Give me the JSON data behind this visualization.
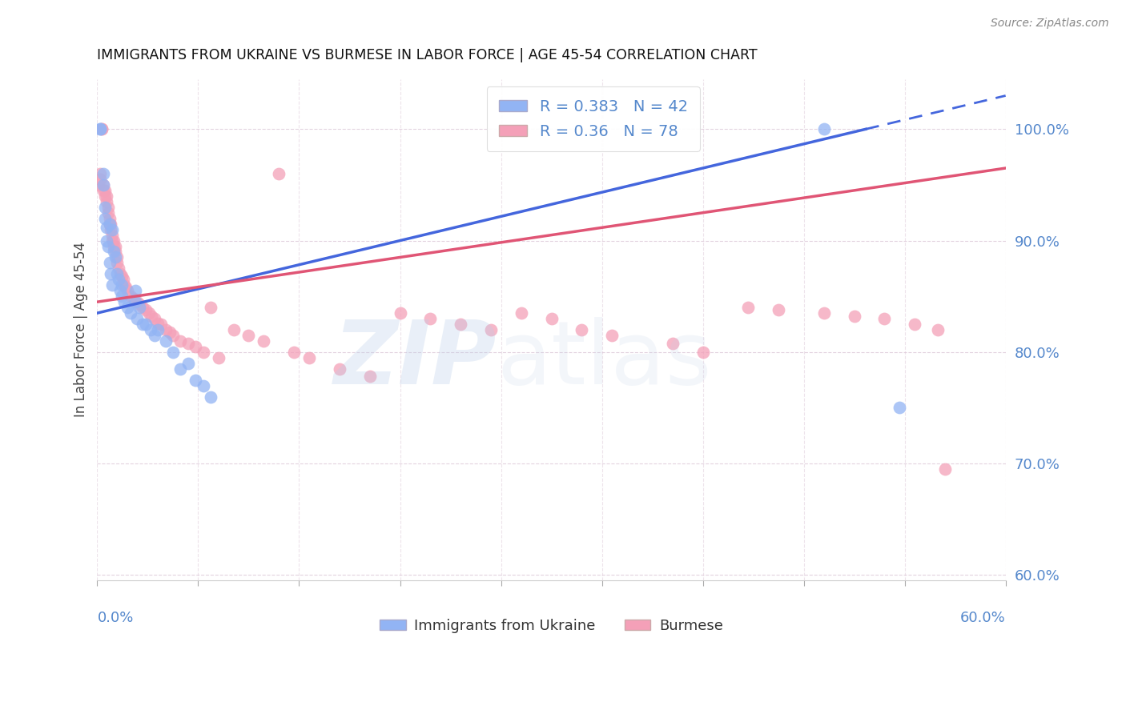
{
  "title": "IMMIGRANTS FROM UKRAINE VS BURMESE IN LABOR FORCE | AGE 45-54 CORRELATION CHART",
  "source": "Source: ZipAtlas.com",
  "ylabel": "In Labor Force | Age 45-54",
  "xlim": [
    0.0,
    0.6
  ],
  "ylim": [
    0.595,
    1.045
  ],
  "yticks": [
    0.6,
    0.7,
    0.8,
    0.9,
    1.0
  ],
  "ytick_labels": [
    "60.0%",
    "70.0%",
    "80.0%",
    "90.0%",
    "100.0%"
  ],
  "ukraine_color": "#92b4f4",
  "burmese_color": "#f4a0b8",
  "ukraine_line_color": "#4466dd",
  "burmese_line_color": "#e05575",
  "axis_color": "#5588cc",
  "grid_color": "#ddc8d8",
  "ukraine_R": 0.383,
  "ukraine_N": 42,
  "burmese_R": 0.36,
  "burmese_N": 78,
  "ukraine_trend": [
    0.835,
    1.03
  ],
  "burmese_trend": [
    0.845,
    0.965
  ],
  "ukraine_x": [
    0.002,
    0.002,
    0.004,
    0.004,
    0.005,
    0.005,
    0.006,
    0.006,
    0.007,
    0.008,
    0.008,
    0.009,
    0.01,
    0.01,
    0.011,
    0.012,
    0.013,
    0.014,
    0.015,
    0.016,
    0.016,
    0.018,
    0.02,
    0.022,
    0.025,
    0.025,
    0.026,
    0.028,
    0.03,
    0.032,
    0.035,
    0.038,
    0.04,
    0.045,
    0.05,
    0.055,
    0.06,
    0.065,
    0.07,
    0.075,
    0.48,
    0.53
  ],
  "ukraine_y": [
    1.0,
    1.0,
    0.95,
    0.96,
    0.93,
    0.92,
    0.912,
    0.9,
    0.895,
    0.915,
    0.88,
    0.87,
    0.91,
    0.86,
    0.89,
    0.885,
    0.87,
    0.865,
    0.855,
    0.86,
    0.85,
    0.845,
    0.84,
    0.835,
    0.845,
    0.855,
    0.83,
    0.84,
    0.825,
    0.825,
    0.82,
    0.815,
    0.82,
    0.81,
    0.8,
    0.785,
    0.79,
    0.775,
    0.77,
    0.76,
    1.0,
    0.75
  ],
  "burmese_x": [
    0.001,
    0.002,
    0.002,
    0.003,
    0.003,
    0.004,
    0.004,
    0.005,
    0.005,
    0.006,
    0.006,
    0.007,
    0.007,
    0.008,
    0.008,
    0.009,
    0.009,
    0.01,
    0.01,
    0.011,
    0.011,
    0.012,
    0.012,
    0.013,
    0.013,
    0.014,
    0.015,
    0.016,
    0.017,
    0.018,
    0.019,
    0.02,
    0.022,
    0.024,
    0.026,
    0.028,
    0.03,
    0.032,
    0.034,
    0.036,
    0.038,
    0.04,
    0.042,
    0.045,
    0.048,
    0.05,
    0.055,
    0.06,
    0.065,
    0.07,
    0.075,
    0.08,
    0.09,
    0.1,
    0.11,
    0.12,
    0.13,
    0.14,
    0.16,
    0.18,
    0.2,
    0.22,
    0.24,
    0.26,
    0.28,
    0.3,
    0.32,
    0.34,
    0.38,
    0.4,
    0.43,
    0.45,
    0.48,
    0.5,
    0.52,
    0.54,
    0.555,
    0.56
  ],
  "burmese_y": [
    0.95,
    0.96,
    0.955,
    1.0,
    1.0,
    0.95,
    0.945,
    0.945,
    0.94,
    0.94,
    0.935,
    0.93,
    0.925,
    0.92,
    0.915,
    0.915,
    0.91,
    0.905,
    0.9,
    0.9,
    0.895,
    0.895,
    0.89,
    0.885,
    0.88,
    0.875,
    0.87,
    0.868,
    0.865,
    0.86,
    0.858,
    0.855,
    0.85,
    0.848,
    0.845,
    0.843,
    0.84,
    0.838,
    0.835,
    0.832,
    0.83,
    0.826,
    0.825,
    0.82,
    0.818,
    0.815,
    0.81,
    0.808,
    0.805,
    0.8,
    0.84,
    0.795,
    0.82,
    0.815,
    0.81,
    0.96,
    0.8,
    0.795,
    0.785,
    0.778,
    0.835,
    0.83,
    0.825,
    0.82,
    0.835,
    0.83,
    0.82,
    0.815,
    0.808,
    0.8,
    0.84,
    0.838,
    0.835,
    0.832,
    0.83,
    0.825,
    0.82,
    0.695
  ]
}
